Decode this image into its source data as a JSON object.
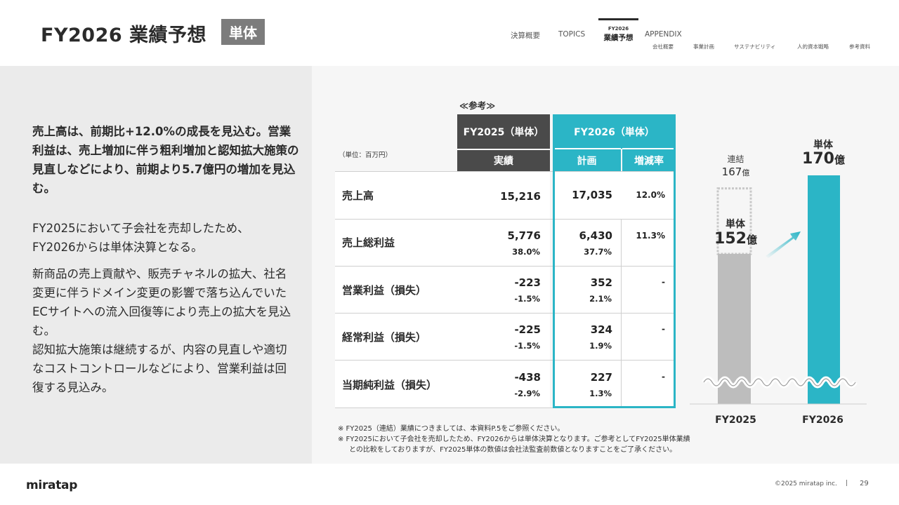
{
  "header": {
    "title": "FY2026 業績予想",
    "badge": "単体",
    "nav": {
      "item1": "決算概要",
      "item2": "TOPICS",
      "active_small": "FY2026",
      "active_label": "業績予想",
      "item4": "APPENDIX",
      "sub1": "会社概要",
      "sub2": "事業計画",
      "sub3": "サステナビリティ",
      "sub4": "人的資本戦略",
      "sub5": "参考資料"
    }
  },
  "left": {
    "lead": "売上高は、前期比+12.0%の成長を見込む。営業利益は、売上増加に伴う粗利増加と認知拡大施策の見直しなどにより、前期より5.7億円の増加を見込む。",
    "para1": "FY2025において子会社を売却したため、FY2026からは単体決算となる。",
    "para2": "新商品の売上貢献や、販売チャネルの拡大、社名変更に伴うドメイン変更の影響で落ち込んでいたECサイトへの流入回復等により売上の拡大を見込む。",
    "para3": "認知拡大施策は継続するが、内容の見直しや適切なコストコントロールなどにより、営業利益は回復する見込み。"
  },
  "table": {
    "ref_label": "≪参考≫",
    "unit": "（単位：百万円）",
    "fy25_head": "FY2025（単体）",
    "fy25_sub": "実績",
    "fy26_head": "FY2026（単体）",
    "fy26_plan": "計画",
    "fy26_rate": "増減率",
    "rows": [
      {
        "label": "売上高",
        "fy25": "15,216",
        "fy25_pct": "",
        "fy26": "17,035",
        "fy26_pct": "",
        "rate": "12.0%"
      },
      {
        "label": "売上総利益",
        "fy25": "5,776",
        "fy25_pct": "38.0%",
        "fy26": "6,430",
        "fy26_pct": "37.7%",
        "rate": "11.3%"
      },
      {
        "label": "営業利益（損失）",
        "fy25": "-223",
        "fy25_pct": "-1.5%",
        "fy26": "352",
        "fy26_pct": "2.1%",
        "rate": "-"
      },
      {
        "label": "経常利益（損失）",
        "fy25": "-225",
        "fy25_pct": "-1.5%",
        "fy26": "324",
        "fy26_pct": "1.9%",
        "rate": "-"
      },
      {
        "label": "当期純利益（損失）",
        "fy25": "-438",
        "fy25_pct": "-2.9%",
        "fy26": "227",
        "fy26_pct": "1.3%",
        "rate": "-"
      }
    ]
  },
  "chart_data": {
    "type": "bar",
    "categories": [
      "FY2025",
      "FY2026"
    ],
    "series": [
      {
        "name": "単体",
        "values": [
          152,
          170
        ]
      },
      {
        "name": "連結",
        "values": [
          167,
          null
        ]
      }
    ],
    "unit": "億",
    "labels": {
      "fy25_consolidated_name": "連結",
      "fy25_consolidated_value": "167",
      "fy25_consolidated_unit": "億",
      "fy25_single_name": "単体",
      "fy25_single_value": "152",
      "fy25_single_unit": "億",
      "fy26_single_name": "単体",
      "fy26_single_value": "170",
      "fy26_single_unit": "億"
    },
    "axis_break": true,
    "colors": {
      "fy2025": "#bdbdbd",
      "fy2026": "#2bb5c6",
      "consolidated_outline": "#c8c8c8"
    }
  },
  "notes": {
    "note1": "※ FY2025（連結）業績につきましては、本資料P.5をご参照ください。",
    "note2": "※ FY2025において子会社を売却したため、FY2026からは単体決算となります。ご参考としてFY2025単体業績",
    "note3": "との比較をしておりますが、FY2025単体の数値は会社法監査前数値となりますことをご了承ください。"
  },
  "footer": {
    "logo": "miratap",
    "copyright": "©2025 miratap inc.",
    "sep": "|",
    "page": "29"
  }
}
